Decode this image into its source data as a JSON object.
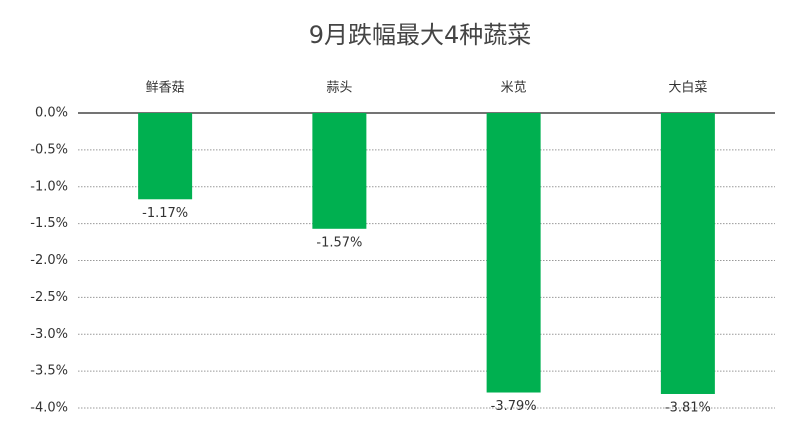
{
  "chart_data": {
    "type": "bar",
    "title": "9月跌幅最大4种蔬菜",
    "categories": [
      "鲜香菇",
      "蒜头",
      "米苋",
      "大白菜"
    ],
    "values": [
      -1.17,
      -1.57,
      -3.79,
      -3.81
    ],
    "value_labels": [
      "-1.17%",
      "-1.57%",
      "-3.79%",
      "-3.81%"
    ],
    "color": "#00b050",
    "ylim": [
      -4,
      0
    ],
    "yticks": [
      {
        "value": 0,
        "label": "0.0%"
      },
      {
        "value": -0.5,
        "label": "-0.5%"
      },
      {
        "value": -1,
        "label": "-1.0%"
      },
      {
        "value": -1.5,
        "label": "-1.5%"
      },
      {
        "value": -2,
        "label": "-2.0%"
      },
      {
        "value": -2.5,
        "label": "-2.5%"
      },
      {
        "value": -3,
        "label": "-3.0%"
      },
      {
        "value": -3.5,
        "label": "-3.5%"
      },
      {
        "value": -4,
        "label": "-4.0%"
      }
    ],
    "grid": true
  }
}
